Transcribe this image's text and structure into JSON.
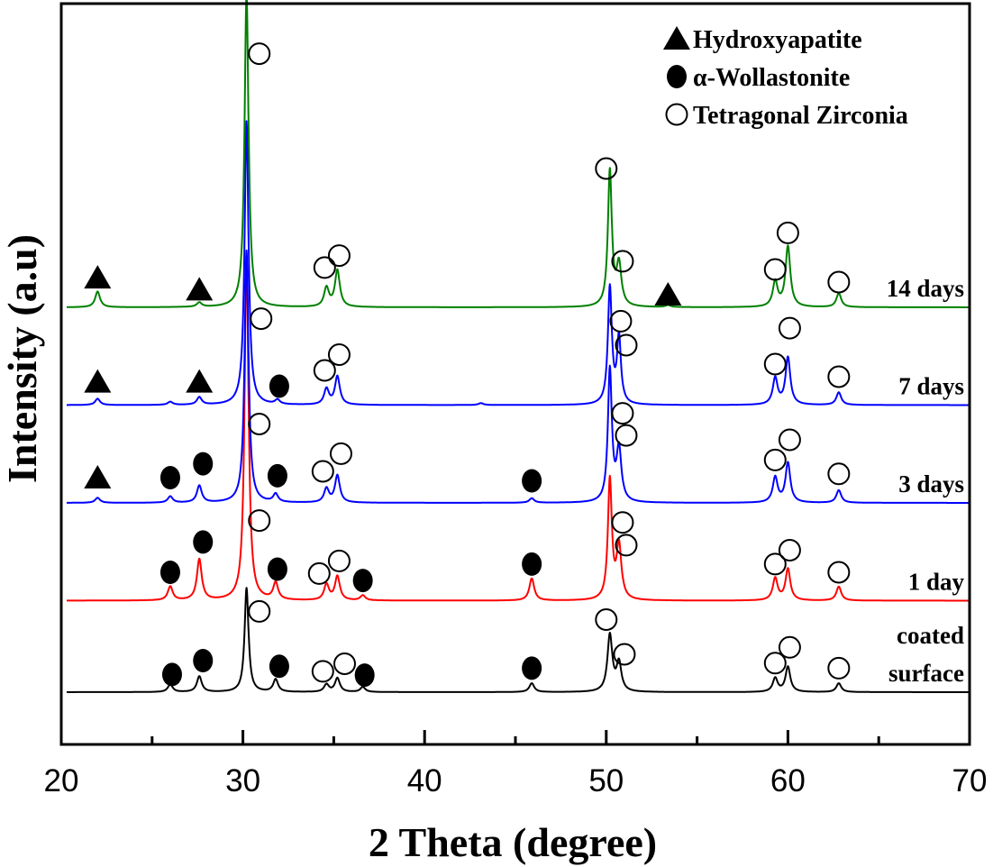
{
  "chart_data": {
    "type": "line",
    "title": "",
    "xlabel": "2 Theta (degree)",
    "ylabel": "Intensity (a.u)",
    "xlim": [
      20,
      70
    ],
    "ylim": [
      0,
      1
    ],
    "x_ticks": [
      20,
      30,
      40,
      50,
      60,
      70
    ],
    "x_minor_ticks": [
      25,
      35,
      45,
      55,
      65
    ],
    "grid": false,
    "legend": {
      "placement": "top-right",
      "entries": [
        {
          "marker": "filled-triangle",
          "label": "Hydroxyapatite"
        },
        {
          "marker": "filled-circle",
          "label": "α-Wollastonite"
        },
        {
          "marker": "open-circle",
          "label": "Tetragonal Zirconia"
        }
      ]
    },
    "series": [
      {
        "name": "coated surface",
        "label_lines": [
          "coated",
          "surface"
        ],
        "color": "#000000",
        "baseline": 0.0,
        "peaks": [
          {
            "x": 26.0,
            "h": 0.012
          },
          {
            "x": 27.6,
            "h": 0.025
          },
          {
            "x": 30.2,
            "h": 0.165
          },
          {
            "x": 31.8,
            "h": 0.02
          },
          {
            "x": 34.6,
            "h": 0.012
          },
          {
            "x": 35.2,
            "h": 0.022
          },
          {
            "x": 36.6,
            "h": 0.008
          },
          {
            "x": 45.9,
            "h": 0.014
          },
          {
            "x": 50.2,
            "h": 0.09
          },
          {
            "x": 50.7,
            "h": 0.045
          },
          {
            "x": 59.3,
            "h": 0.022
          },
          {
            "x": 60.0,
            "h": 0.04
          },
          {
            "x": 62.8,
            "h": 0.014
          }
        ],
        "markers": [
          {
            "type": "filled-circle",
            "x": 26.1,
            "y": 0.028
          },
          {
            "type": "filled-circle",
            "x": 27.8,
            "y": 0.05
          },
          {
            "type": "open-circle",
            "x": 30.9,
            "y": 0.128
          },
          {
            "type": "filled-circle",
            "x": 32.0,
            "y": 0.041
          },
          {
            "type": "open-circle",
            "x": 34.4,
            "y": 0.033
          },
          {
            "type": "open-circle",
            "x": 35.6,
            "y": 0.045
          },
          {
            "type": "filled-circle",
            "x": 36.7,
            "y": 0.027
          },
          {
            "type": "filled-circle",
            "x": 45.9,
            "y": 0.038
          },
          {
            "type": "open-circle",
            "x": 50.0,
            "y": 0.115
          },
          {
            "type": "open-circle",
            "x": 51.0,
            "y": 0.06
          },
          {
            "type": "open-circle",
            "x": 59.3,
            "y": 0.046
          },
          {
            "type": "open-circle",
            "x": 60.1,
            "y": 0.071
          },
          {
            "type": "open-circle",
            "x": 62.8,
            "y": 0.038
          }
        ]
      },
      {
        "name": "1 day",
        "label_lines": [
          "1 day"
        ],
        "color": "#ff0000",
        "baseline": 0.145,
        "peaks": [
          {
            "x": 26.0,
            "h": 0.022
          },
          {
            "x": 27.6,
            "h": 0.065
          },
          {
            "x": 30.2,
            "h": 0.55
          },
          {
            "x": 31.8,
            "h": 0.027
          },
          {
            "x": 34.6,
            "h": 0.025
          },
          {
            "x": 35.2,
            "h": 0.038
          },
          {
            "x": 36.6,
            "h": 0.008
          },
          {
            "x": 45.9,
            "h": 0.035
          },
          {
            "x": 50.2,
            "h": 0.19
          },
          {
            "x": 50.7,
            "h": 0.085
          },
          {
            "x": 59.3,
            "h": 0.035
          },
          {
            "x": 60.0,
            "h": 0.05
          },
          {
            "x": 62.8,
            "h": 0.022
          }
        ],
        "markers": [
          {
            "type": "filled-circle",
            "x": 26.0,
            "y": 0.045
          },
          {
            "type": "filled-circle",
            "x": 27.8,
            "y": 0.093
          },
          {
            "type": "open-circle",
            "x": 30.9,
            "y": 0.127
          },
          {
            "type": "filled-circle",
            "x": 31.9,
            "y": 0.05
          },
          {
            "type": "open-circle",
            "x": 34.2,
            "y": 0.043
          },
          {
            "type": "open-circle",
            "x": 35.3,
            "y": 0.063
          },
          {
            "type": "filled-circle",
            "x": 36.6,
            "y": 0.032
          },
          {
            "type": "filled-circle",
            "x": 45.9,
            "y": 0.058
          },
          {
            "type": "open-circle",
            "x": 50.9,
            "y": 0.124
          },
          {
            "type": "open-circle",
            "x": 51.1,
            "y": 0.088
          },
          {
            "type": "open-circle",
            "x": 59.3,
            "y": 0.058
          },
          {
            "type": "open-circle",
            "x": 60.1,
            "y": 0.08
          },
          {
            "type": "open-circle",
            "x": 62.8,
            "y": 0.045
          }
        ]
      },
      {
        "name": "3 days",
        "label_lines": [
          "3 days"
        ],
        "color": "#0000ff",
        "baseline": 0.3,
        "peaks": [
          {
            "x": 22.0,
            "h": 0.008
          },
          {
            "x": 26.0,
            "h": 0.01
          },
          {
            "x": 27.6,
            "h": 0.027
          },
          {
            "x": 30.2,
            "h": 0.4
          },
          {
            "x": 31.8,
            "h": 0.013
          },
          {
            "x": 34.6,
            "h": 0.022
          },
          {
            "x": 35.2,
            "h": 0.043
          },
          {
            "x": 45.9,
            "h": 0.007
          },
          {
            "x": 50.2,
            "h": 0.21
          },
          {
            "x": 50.7,
            "h": 0.083
          },
          {
            "x": 59.3,
            "h": 0.04
          },
          {
            "x": 60.0,
            "h": 0.063
          },
          {
            "x": 62.8,
            "h": 0.02
          }
        ],
        "markers": [
          {
            "type": "filled-triangle",
            "x": 22.0,
            "y": 0.04
          },
          {
            "type": "filled-circle",
            "x": 26.0,
            "y": 0.04
          },
          {
            "type": "filled-circle",
            "x": 27.8,
            "y": 0.062
          },
          {
            "type": "open-circle",
            "x": 30.9,
            "y": 0.125
          },
          {
            "type": "filled-circle",
            "x": 31.9,
            "y": 0.043
          },
          {
            "type": "open-circle",
            "x": 34.4,
            "y": 0.05
          },
          {
            "type": "open-circle",
            "x": 35.4,
            "y": 0.078
          },
          {
            "type": "filled-circle",
            "x": 45.9,
            "y": 0.035
          },
          {
            "type": "open-circle",
            "x": 50.9,
            "y": 0.142
          },
          {
            "type": "open-circle",
            "x": 51.1,
            "y": 0.107
          },
          {
            "type": "open-circle",
            "x": 59.3,
            "y": 0.068
          },
          {
            "type": "open-circle",
            "x": 60.1,
            "y": 0.1
          },
          {
            "type": "open-circle",
            "x": 62.8,
            "y": 0.046
          }
        ]
      },
      {
        "name": "7 days",
        "label_lines": [
          "7 days"
        ],
        "color": "#0000ff",
        "baseline": 0.455,
        "peaks": [
          {
            "x": 22.0,
            "h": 0.01
          },
          {
            "x": 26.0,
            "h": 0.005
          },
          {
            "x": 27.6,
            "h": 0.012
          },
          {
            "x": 30.2,
            "h": 0.45
          },
          {
            "x": 31.9,
            "h": 0.007
          },
          {
            "x": 34.6,
            "h": 0.025
          },
          {
            "x": 35.2,
            "h": 0.045
          },
          {
            "x": 43.1,
            "h": 0.003
          },
          {
            "x": 50.2,
            "h": 0.185
          },
          {
            "x": 50.7,
            "h": 0.105
          },
          {
            "x": 59.3,
            "h": 0.042
          },
          {
            "x": 60.0,
            "h": 0.075
          },
          {
            "x": 62.8,
            "h": 0.02
          }
        ],
        "markers": [
          {
            "type": "filled-triangle",
            "x": 22.0,
            "y": 0.037
          },
          {
            "type": "filled-triangle",
            "x": 27.6,
            "y": 0.037
          },
          {
            "type": "open-circle",
            "x": 31.0,
            "y": 0.137
          },
          {
            "type": "filled-circle",
            "x": 32.0,
            "y": 0.03
          },
          {
            "type": "open-circle",
            "x": 34.5,
            "y": 0.055
          },
          {
            "type": "open-circle",
            "x": 35.3,
            "y": 0.08
          },
          {
            "type": "open-circle",
            "x": 50.8,
            "y": 0.133
          },
          {
            "type": "open-circle",
            "x": 51.1,
            "y": 0.095
          },
          {
            "type": "open-circle",
            "x": 59.3,
            "y": 0.065
          },
          {
            "type": "open-circle",
            "x": 60.1,
            "y": 0.122
          },
          {
            "type": "open-circle",
            "x": 62.8,
            "y": 0.045
          }
        ]
      },
      {
        "name": "14 days",
        "label_lines": [
          "14 days"
        ],
        "color": "#008000",
        "baseline": 0.61,
        "peaks": [
          {
            "x": 22.0,
            "h": 0.025
          },
          {
            "x": 27.6,
            "h": 0.007
          },
          {
            "x": 30.2,
            "h": 0.5
          },
          {
            "x": 34.6,
            "h": 0.03
          },
          {
            "x": 35.2,
            "h": 0.058
          },
          {
            "x": 50.2,
            "h": 0.215
          },
          {
            "x": 50.7,
            "h": 0.065
          },
          {
            "x": 53.4,
            "h": 0.003
          },
          {
            "x": 59.3,
            "h": 0.04
          },
          {
            "x": 60.0,
            "h": 0.096
          },
          {
            "x": 62.8,
            "h": 0.022
          }
        ],
        "markers": [
          {
            "type": "filled-triangle",
            "x": 22.0,
            "y": 0.047
          },
          {
            "type": "filled-triangle",
            "x": 27.6,
            "y": 0.028
          },
          {
            "type": "open-circle",
            "x": 30.9,
            "y": 0.402
          },
          {
            "type": "open-circle",
            "x": 34.5,
            "y": 0.063
          },
          {
            "type": "open-circle",
            "x": 35.3,
            "y": 0.082
          },
          {
            "type": "open-circle",
            "x": 50.0,
            "y": 0.22
          },
          {
            "type": "open-circle",
            "x": 50.9,
            "y": 0.073
          },
          {
            "type": "filled-triangle",
            "x": 53.4,
            "y": 0.02
          },
          {
            "type": "open-circle",
            "x": 59.3,
            "y": 0.06
          },
          {
            "type": "open-circle",
            "x": 60.0,
            "y": 0.118
          },
          {
            "type": "open-circle",
            "x": 62.8,
            "y": 0.04
          }
        ]
      }
    ]
  }
}
